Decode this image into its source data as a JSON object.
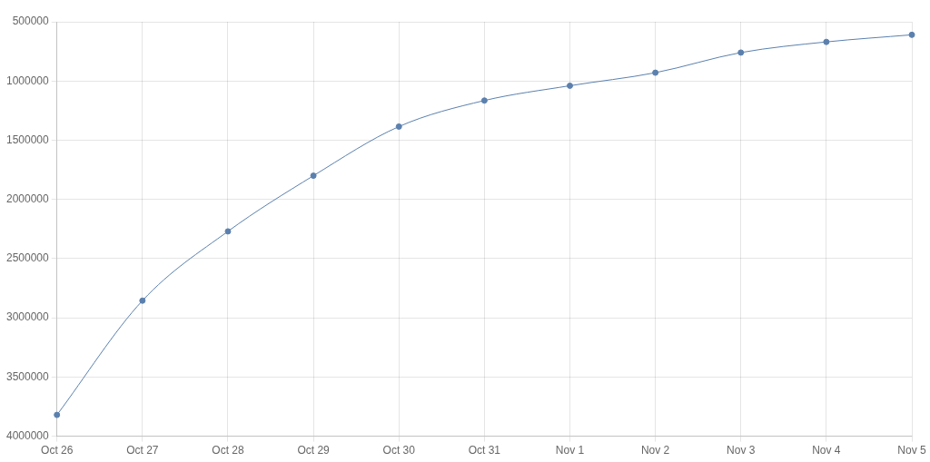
{
  "chart_data": {
    "type": "line",
    "categories": [
      "Oct 26",
      "Oct 27",
      "Oct 28",
      "Oct 29",
      "Oct 30",
      "Oct 31",
      "Nov 1",
      "Nov 2",
      "Nov 3",
      "Nov 4",
      "Nov 5"
    ],
    "series": [
      {
        "color": "#5b80ae",
        "values": [
          3820000,
          2855000,
          2270000,
          1800000,
          1385000,
          1165000,
          1040000,
          930000,
          760000,
          670000,
          610000
        ]
      }
    ],
    "ylim": [
      4000000,
      500000
    ],
    "yticks": [
      500000,
      1000000,
      1500000,
      2000000,
      2500000,
      3000000,
      3500000,
      4000000
    ],
    "grid": true,
    "legend": false,
    "marker": "circle",
    "line_style": "solid"
  }
}
